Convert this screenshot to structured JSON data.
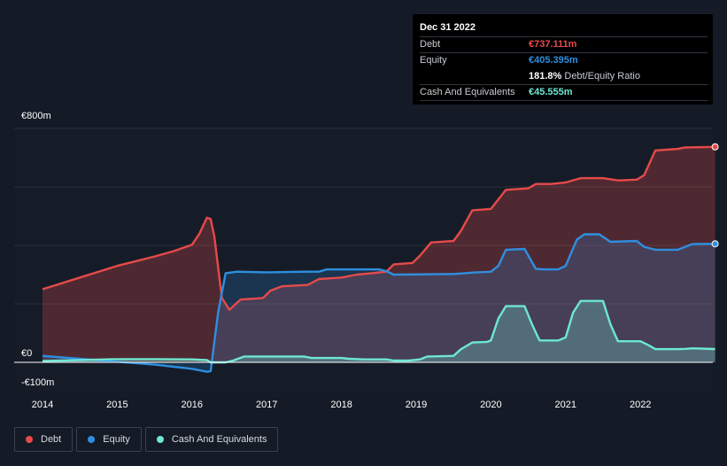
{
  "colors": {
    "debt": "#e64a4a",
    "equity": "#2e8fe0",
    "cash": "#6ee7d4",
    "background": "#151b26",
    "grid": "#2b313b",
    "axis_text": "#ffffff"
  },
  "tooltip": {
    "date": "Dec 31 2022",
    "debt_label": "Debt",
    "debt_value": "€737.111m",
    "equity_label": "Equity",
    "equity_value": "€405.395m",
    "ratio_value": "181.8%",
    "ratio_label": "Debt/Equity Ratio",
    "cash_label": "Cash And Equivalents",
    "cash_value": "€45.555m"
  },
  "legend": {
    "debt": "Debt",
    "equity": "Equity",
    "cash": "Cash And Equivalents"
  },
  "chart_data": {
    "type": "area",
    "title": "",
    "xlabel": "",
    "ylabel": "",
    "xlim": [
      2014,
      2023
    ],
    "ylim": [
      -100,
      800
    ],
    "y_labels": [
      {
        "value": 800,
        "label": "€800m"
      },
      {
        "value": 0,
        "label": "€0"
      },
      {
        "value": -100,
        "label": "-€100m"
      }
    ],
    "gridlines": [
      800,
      600,
      400,
      200,
      0
    ],
    "x_ticks": [
      {
        "value": 2014,
        "label": "2014"
      },
      {
        "value": 2015,
        "label": "2015"
      },
      {
        "value": 2016,
        "label": "2016"
      },
      {
        "value": 2017,
        "label": "2017"
      },
      {
        "value": 2018,
        "label": "2018"
      },
      {
        "value": 2019,
        "label": "2019"
      },
      {
        "value": 2020,
        "label": "2020"
      },
      {
        "value": 2021,
        "label": "2021"
      },
      {
        "value": 2022,
        "label": "2022"
      }
    ],
    "series": [
      {
        "name": "Debt",
        "key": "debt",
        "points": [
          [
            2014.0,
            250
          ],
          [
            2014.5,
            290
          ],
          [
            2015.0,
            330
          ],
          [
            2015.5,
            362
          ],
          [
            2015.75,
            380
          ],
          [
            2016.0,
            402
          ],
          [
            2016.1,
            440
          ],
          [
            2016.2,
            495
          ],
          [
            2016.25,
            490
          ],
          [
            2016.3,
            430
          ],
          [
            2016.4,
            220
          ],
          [
            2016.5,
            180
          ],
          [
            2016.65,
            215
          ],
          [
            2016.95,
            220
          ],
          [
            2017.05,
            245
          ],
          [
            2017.2,
            260
          ],
          [
            2017.55,
            265
          ],
          [
            2017.7,
            285
          ],
          [
            2018.0,
            290
          ],
          [
            2018.2,
            300
          ],
          [
            2018.4,
            305
          ],
          [
            2018.6,
            310
          ],
          [
            2018.7,
            335
          ],
          [
            2018.95,
            340
          ],
          [
            2019.05,
            365
          ],
          [
            2019.2,
            410
          ],
          [
            2019.5,
            415
          ],
          [
            2019.6,
            450
          ],
          [
            2019.75,
            520
          ],
          [
            2020.0,
            525
          ],
          [
            2020.2,
            590
          ],
          [
            2020.5,
            595
          ],
          [
            2020.6,
            610
          ],
          [
            2020.8,
            610
          ],
          [
            2021.0,
            615
          ],
          [
            2021.2,
            630
          ],
          [
            2021.5,
            630
          ],
          [
            2021.7,
            622
          ],
          [
            2021.95,
            625
          ],
          [
            2022.05,
            640
          ],
          [
            2022.2,
            725
          ],
          [
            2022.5,
            730
          ],
          [
            2022.6,
            735
          ],
          [
            2023.0,
            737.111
          ]
        ]
      },
      {
        "name": "Equity",
        "key": "equity",
        "points": [
          [
            2014.0,
            22
          ],
          [
            2014.5,
            12
          ],
          [
            2015.0,
            2
          ],
          [
            2015.5,
            -8
          ],
          [
            2016.0,
            -22
          ],
          [
            2016.2,
            -32
          ],
          [
            2016.25,
            -30
          ],
          [
            2016.35,
            170
          ],
          [
            2016.45,
            305
          ],
          [
            2016.6,
            310
          ],
          [
            2017.0,
            308
          ],
          [
            2017.5,
            310
          ],
          [
            2017.7,
            310
          ],
          [
            2017.8,
            318
          ],
          [
            2018.5,
            318
          ],
          [
            2018.6,
            312
          ],
          [
            2018.7,
            300
          ],
          [
            2019.5,
            302
          ],
          [
            2019.65,
            305
          ],
          [
            2019.75,
            307
          ],
          [
            2020.0,
            310
          ],
          [
            2020.1,
            330
          ],
          [
            2020.2,
            385
          ],
          [
            2020.45,
            388
          ],
          [
            2020.6,
            320
          ],
          [
            2020.7,
            318
          ],
          [
            2020.9,
            318
          ],
          [
            2021.0,
            330
          ],
          [
            2021.15,
            420
          ],
          [
            2021.25,
            438
          ],
          [
            2021.45,
            438
          ],
          [
            2021.6,
            412
          ],
          [
            2021.95,
            415
          ],
          [
            2022.05,
            395
          ],
          [
            2022.2,
            385
          ],
          [
            2022.5,
            385
          ],
          [
            2022.6,
            395
          ],
          [
            2022.7,
            405
          ],
          [
            2023.0,
            405.395
          ]
        ]
      },
      {
        "name": "Cash And Equivalents",
        "key": "cash",
        "points": [
          [
            2014.0,
            5
          ],
          [
            2014.5,
            8
          ],
          [
            2015.0,
            11
          ],
          [
            2015.5,
            11
          ],
          [
            2016.0,
            10
          ],
          [
            2016.2,
            8
          ],
          [
            2016.25,
            0
          ],
          [
            2016.45,
            0
          ],
          [
            2016.55,
            6
          ],
          [
            2016.7,
            20
          ],
          [
            2017.5,
            20
          ],
          [
            2017.6,
            15
          ],
          [
            2018.0,
            15
          ],
          [
            2018.1,
            12
          ],
          [
            2018.3,
            10
          ],
          [
            2018.6,
            10
          ],
          [
            2018.7,
            6
          ],
          [
            2018.9,
            6
          ],
          [
            2019.05,
            10
          ],
          [
            2019.15,
            20
          ],
          [
            2019.5,
            22
          ],
          [
            2019.6,
            45
          ],
          [
            2019.75,
            68
          ],
          [
            2019.95,
            70
          ],
          [
            2020.0,
            75
          ],
          [
            2020.1,
            150
          ],
          [
            2020.2,
            192
          ],
          [
            2020.45,
            192
          ],
          [
            2020.55,
            130
          ],
          [
            2020.65,
            75
          ],
          [
            2020.9,
            75
          ],
          [
            2021.0,
            85
          ],
          [
            2021.1,
            170
          ],
          [
            2021.2,
            210
          ],
          [
            2021.5,
            210
          ],
          [
            2021.6,
            130
          ],
          [
            2021.7,
            72
          ],
          [
            2022.0,
            72
          ],
          [
            2022.1,
            60
          ],
          [
            2022.2,
            45
          ],
          [
            2022.5,
            45
          ],
          [
            2022.6,
            46
          ],
          [
            2022.7,
            48
          ],
          [
            2023.0,
            45.555
          ]
        ]
      }
    ]
  }
}
